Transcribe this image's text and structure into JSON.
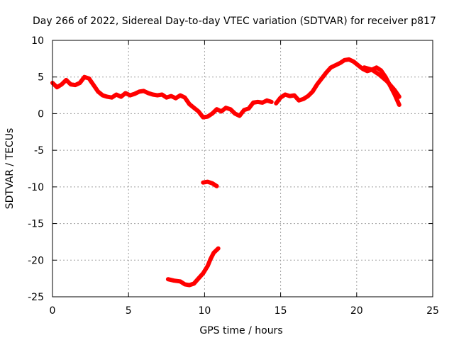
{
  "chart_data": {
    "type": "line",
    "title": "Day 266 of 2022, Sidereal Day-to-day VTEC variation (SDTVAR) for receiver p817",
    "xlabel": "GPS time / hours",
    "ylabel": "SDTVAR / TECUs",
    "xlim": [
      0,
      25
    ],
    "ylim": [
      -25,
      10
    ],
    "xticks": [
      0,
      5,
      10,
      15,
      20,
      25
    ],
    "yticks": [
      -25,
      -20,
      -15,
      -10,
      -5,
      0,
      5,
      10
    ],
    "grid": true,
    "color": "#ff0000",
    "series": [
      {
        "name": "main",
        "x": [
          0.0,
          0.3,
          0.6,
          0.9,
          1.2,
          1.5,
          1.8,
          2.1,
          2.4,
          2.7,
          3.0,
          3.3,
          3.6,
          3.9,
          4.2,
          4.5,
          4.8,
          5.1,
          5.4,
          5.7,
          6.0,
          6.3,
          6.6,
          6.9,
          7.2,
          7.5,
          7.8,
          8.1,
          8.4,
          8.7,
          9.0,
          9.3,
          9.6,
          9.9,
          10.2,
          10.5,
          10.8,
          11.1,
          11.4,
          11.7,
          12.0,
          12.3,
          12.6,
          12.9,
          13.2,
          13.5,
          13.8,
          14.1,
          14.4
        ],
        "y": [
          4.2,
          3.6,
          4.0,
          4.6,
          4.0,
          3.9,
          4.2,
          5.0,
          4.8,
          3.9,
          3.0,
          2.5,
          2.3,
          2.2,
          2.6,
          2.3,
          2.8,
          2.5,
          2.7,
          3.0,
          3.1,
          2.8,
          2.6,
          2.5,
          2.6,
          2.2,
          2.4,
          2.1,
          2.5,
          2.2,
          1.3,
          0.8,
          0.3,
          -0.5,
          -0.4,
          0.0,
          0.6,
          0.3,
          0.8,
          0.6,
          0.0,
          -0.3,
          0.5,
          0.7,
          1.5,
          1.6,
          1.5,
          1.8,
          1.6
        ]
      },
      {
        "name": "main-2",
        "x": [
          14.7,
          15.0,
          15.3,
          15.6,
          15.9,
          16.2,
          16.5,
          16.8,
          17.1,
          17.4,
          17.7,
          18.0,
          18.3,
          18.6,
          18.9,
          19.2,
          19.5,
          19.8,
          20.1,
          20.4,
          20.7,
          21.0,
          21.3,
          21.6,
          21.9,
          22.2,
          22.5,
          22.8
        ],
        "y": [
          1.4,
          2.2,
          2.6,
          2.4,
          2.5,
          1.8,
          2.0,
          2.4,
          3.0,
          4.0,
          4.8,
          5.6,
          6.3,
          6.6,
          6.9,
          7.3,
          7.4,
          7.1,
          6.6,
          6.1,
          5.8,
          6.0,
          6.3,
          5.9,
          5.0,
          3.8,
          2.6,
          1.2
        ]
      },
      {
        "name": "main-3",
        "x": [
          20.5,
          21.0,
          21.5,
          22.0,
          22.5,
          22.8
        ],
        "y": [
          6.3,
          6.0,
          5.3,
          4.4,
          3.2,
          2.3
        ]
      },
      {
        "name": "mid-segment",
        "x": [
          9.9,
          10.2,
          10.5,
          10.8
        ],
        "y": [
          -9.4,
          -9.3,
          -9.5,
          -9.9
        ]
      },
      {
        "name": "low-segment",
        "x": [
          7.6,
          8.0,
          8.4,
          8.7,
          9.0,
          9.3,
          9.6,
          9.9,
          10.2,
          10.4,
          10.6,
          10.9
        ],
        "y": [
          -22.6,
          -22.8,
          -22.9,
          -23.3,
          -23.4,
          -23.2,
          -22.5,
          -21.8,
          -20.8,
          -19.8,
          -19.0,
          -18.4
        ]
      }
    ]
  }
}
